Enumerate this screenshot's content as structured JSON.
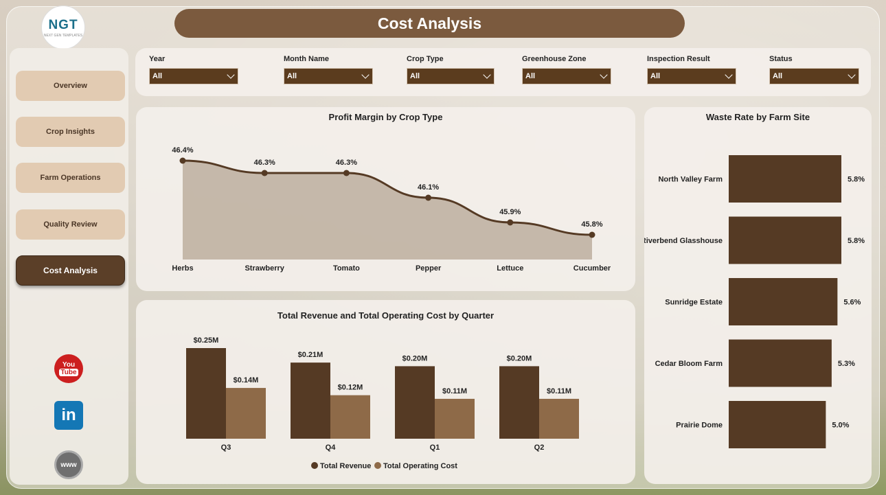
{
  "header": {
    "title": "Cost Analysis",
    "logo_text": "NGT",
    "logo_subtext": "NEXT GEN TEMPLATES"
  },
  "sidebar": {
    "items": [
      {
        "label": "Overview",
        "active": false
      },
      {
        "label": "Crop Insights",
        "active": false
      },
      {
        "label": "Farm Operations",
        "active": false
      },
      {
        "label": "Quality Review",
        "active": false
      },
      {
        "label": "Cost Analysis",
        "active": true
      }
    ],
    "social": [
      {
        "icon": "youtube-icon",
        "text": "You",
        "text2": "Tube"
      },
      {
        "icon": "linkedin-icon",
        "text": "in"
      },
      {
        "icon": "website-icon",
        "text": "www"
      }
    ]
  },
  "filters": [
    {
      "label": "Year",
      "value": "All"
    },
    {
      "label": "Month Name",
      "value": "All"
    },
    {
      "label": "Crop Type",
      "value": "All"
    },
    {
      "label": "Greenhouse Zone",
      "value": "All"
    },
    {
      "label": "Inspection Result",
      "value": "All"
    },
    {
      "label": "Status",
      "value": "All"
    }
  ],
  "colors": {
    "dark_brown": "#553a24",
    "light_brown": "#8e6a48",
    "accent": "#7b5a3e"
  },
  "chart_data": [
    {
      "type": "area",
      "title": "Profit Margin by Crop Type",
      "categories": [
        "Herbs",
        "Strawberry",
        "Tomato",
        "Pepper",
        "Lettuce",
        "Cucumber"
      ],
      "values": [
        46.4,
        46.3,
        46.3,
        46.1,
        45.9,
        45.8
      ],
      "data_labels": [
        "46.4%",
        "46.3%",
        "46.3%",
        "46.1%",
        "45.9%",
        "45.8%"
      ],
      "ylim": [
        45.6,
        46.5
      ]
    },
    {
      "type": "bar",
      "title": "Total Revenue and Total Operating Cost by Quarter",
      "categories": [
        "Q3",
        "Q4",
        "Q1",
        "Q2"
      ],
      "series": [
        {
          "name": "Total Revenue",
          "values": [
            0.25,
            0.21,
            0.2,
            0.2
          ],
          "labels": [
            "$0.25M",
            "$0.21M",
            "$0.20M",
            "$0.20M"
          ],
          "color": "#553a24"
        },
        {
          "name": "Total Operating Cost",
          "values": [
            0.14,
            0.12,
            0.11,
            0.11
          ],
          "labels": [
            "$0.14M",
            "$0.12M",
            "$0.11M",
            "$0.11M"
          ],
          "color": "#8e6a48"
        }
      ],
      "ylim": [
        0,
        0.25
      ],
      "legend": "bottom"
    },
    {
      "type": "bar",
      "orientation": "horizontal",
      "title": "Waste Rate by Farm Site",
      "categories": [
        "North Valley Farm",
        "Riverbend Glasshouse",
        "Sunridge Estate",
        "Cedar Bloom Farm",
        "Prairie Dome"
      ],
      "values": [
        5.8,
        5.8,
        5.6,
        5.3,
        5.0
      ],
      "data_labels": [
        "5.8%",
        "5.8%",
        "5.6%",
        "5.3%",
        "5.0%"
      ],
      "color": "#553a24"
    }
  ]
}
